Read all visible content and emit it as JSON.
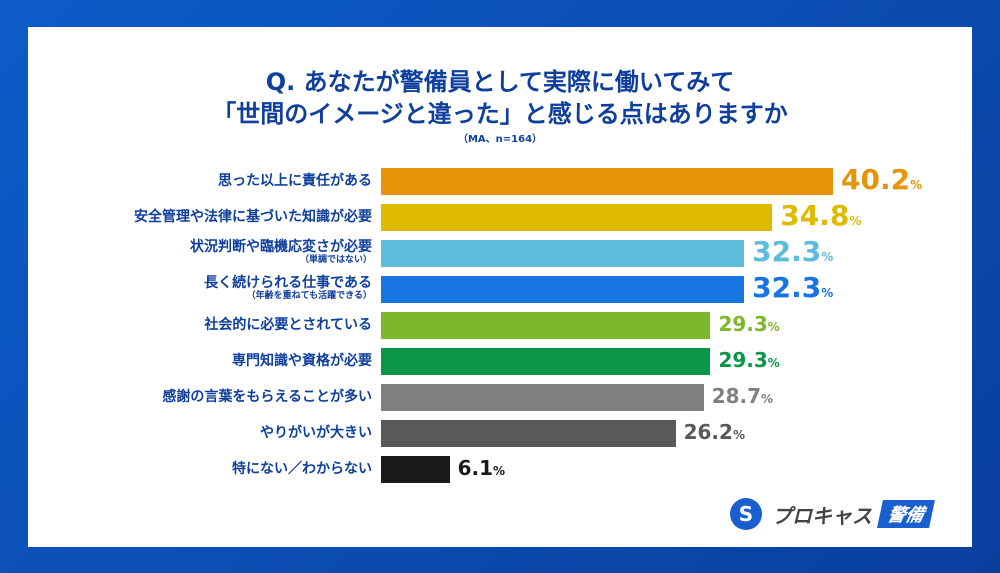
{
  "title_line1": "Q. あなたが警備員として実際に働いてみて",
  "title_line2": "「世間のイメージと違った」と感じる点はありますか",
  "note": "（MA、n=164）",
  "logo": {
    "text": "プロキャス",
    "badge": "警備"
  },
  "chart_data": {
    "type": "bar",
    "orientation": "horizontal",
    "unit": "%",
    "xlim": [
      0,
      40.2
    ],
    "categories": [
      {
        "label": "思った以上に責任がある",
        "sub": "",
        "value": 40.2,
        "color": "#e8940a"
      },
      {
        "label": "安全管理や法律に基づいた知識が必要",
        "sub": "",
        "value": 34.8,
        "color": "#dfbb00"
      },
      {
        "label": "状況判断や臨機応変さが必要",
        "sub": "（単調ではない）",
        "value": 32.3,
        "color": "#5bbcdc"
      },
      {
        "label": "長く続けられる仕事である",
        "sub": "（年齢を重ねても活躍できる）",
        "value": 32.3,
        "color": "#1675e0"
      },
      {
        "label": "社会的に必要とされている",
        "sub": "",
        "value": 29.3,
        "color": "#7cb82a"
      },
      {
        "label": "専門知識や資格が必要",
        "sub": "",
        "value": 29.3,
        "color": "#0a9646"
      },
      {
        "label": "感謝の言葉をもらえることが多い",
        "sub": "",
        "value": 28.7,
        "color": "#808080"
      },
      {
        "label": "やりがいが大きい",
        "sub": "",
        "value": 26.2,
        "color": "#595959"
      },
      {
        "label": "特にない／わからない",
        "sub": "",
        "value": 6.1,
        "color": "#1a1a1a"
      }
    ]
  }
}
